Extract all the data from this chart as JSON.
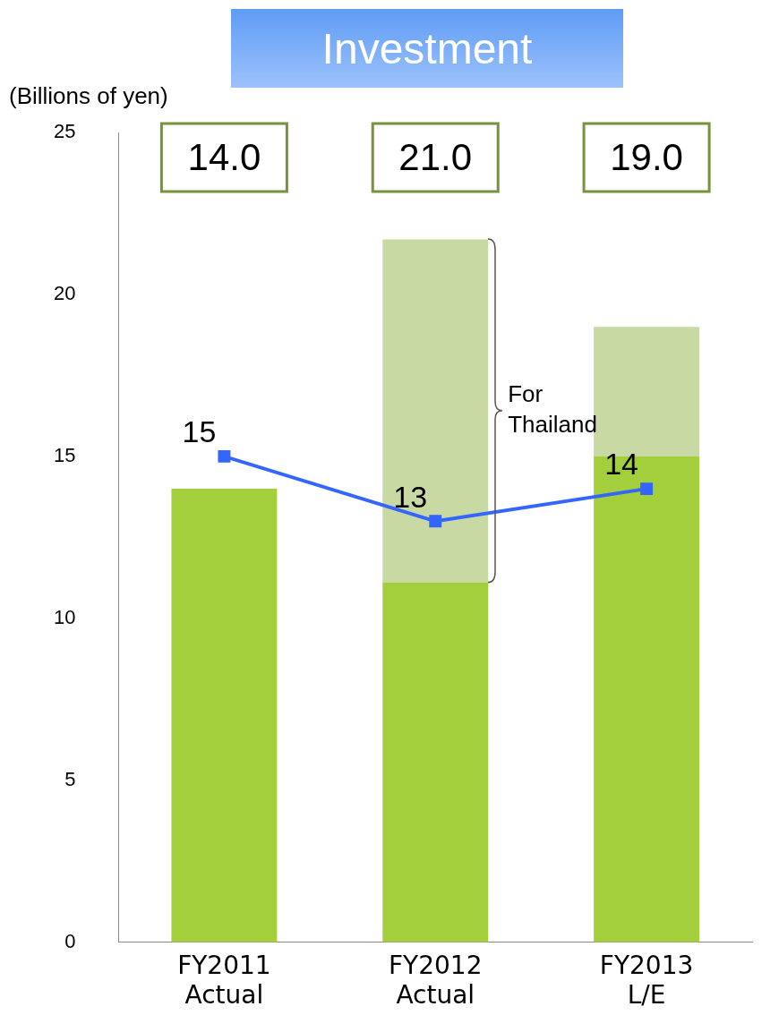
{
  "chart_data": {
    "type": "bar",
    "title": "Investment",
    "ylabel": "(Billions of yen)",
    "categories": [
      "FY2011\nActual",
      "FY2012\nActual",
      "FY2013\nL/E"
    ],
    "stacked": true,
    "series": [
      {
        "color": "#a4cf3c",
        "values": [
          14,
          11.1,
          15
        ]
      },
      {
        "color": "#c8d9a4",
        "values": [
          null,
          10.6,
          4
        ]
      },
      {
        "type": "line",
        "color": "#3366ff",
        "values": [
          15,
          13,
          14
        ],
        "value_labels": [
          "15",
          "13",
          "14"
        ]
      }
    ],
    "annotations": [
      "14.0",
      "21.0",
      "19.0",
      "For Thailand"
    ],
    "ylim": [
      0,
      25
    ],
    "yticks": [
      0,
      5,
      10,
      15,
      20,
      25
    ],
    "grid": false,
    "legend": false,
    "marker": "square",
    "line_style": "solid"
  }
}
